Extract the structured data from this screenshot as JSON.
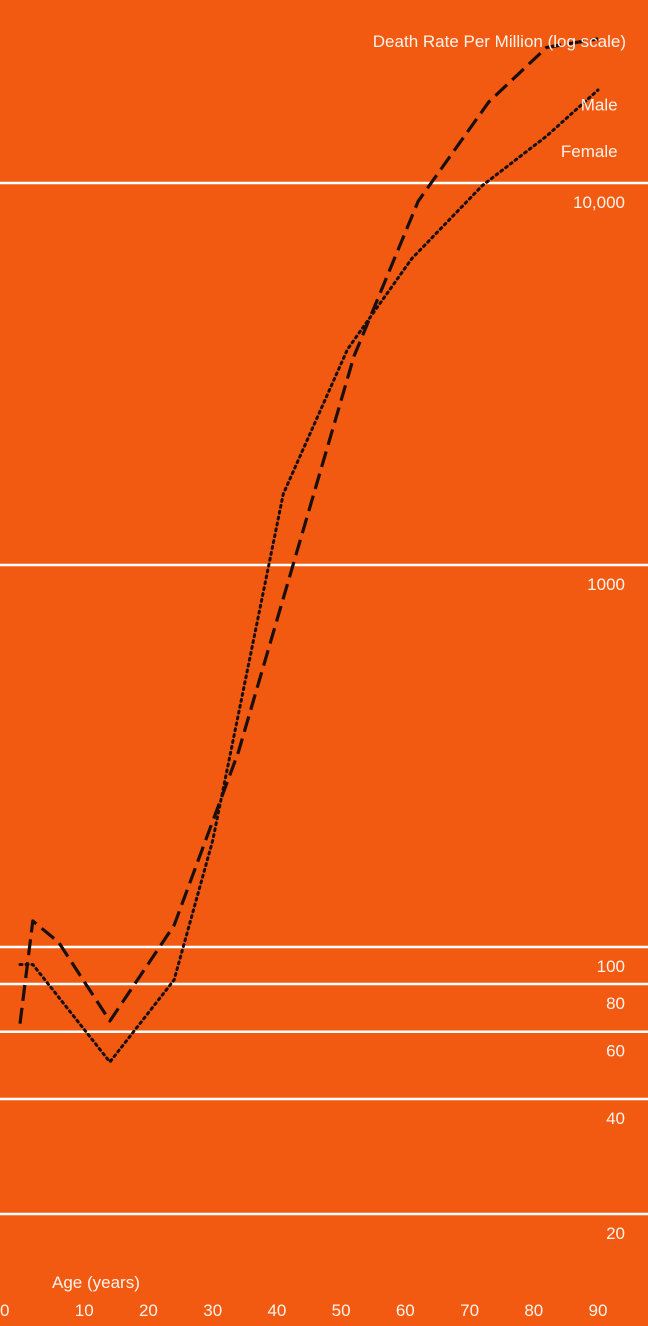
{
  "chart_data": {
    "type": "line",
    "title": "Death Rate Per Million (log scale)",
    "xlabel": "Age (years)",
    "ylabel": "Death Rate Per Million (log scale)",
    "y_scale": "log",
    "grid": true,
    "background_color": "#f25a12",
    "gridline_color": "#ffffff",
    "text_color": "#fff3ec",
    "line_color": "#1a0f0a",
    "xlim": [
      0,
      90
    ],
    "ylim": [
      14,
      30000
    ],
    "x_ticks": [
      {
        "value": 0,
        "label": "0"
      },
      {
        "value": 10,
        "label": "10"
      },
      {
        "value": 20,
        "label": "20"
      },
      {
        "value": 30,
        "label": "30"
      },
      {
        "value": 40,
        "label": "40"
      },
      {
        "value": 50,
        "label": "50"
      },
      {
        "value": 60,
        "label": "60"
      },
      {
        "value": 70,
        "label": "70"
      },
      {
        "value": 80,
        "label": "80"
      },
      {
        "value": 90,
        "label": "90"
      }
    ],
    "y_ticks": [
      {
        "value": 10000,
        "label": "10,000"
      },
      {
        "value": 1000,
        "label": "1000"
      },
      {
        "value": 100,
        "label": "100"
      },
      {
        "value": 80,
        "label": "80"
      },
      {
        "value": 60,
        "label": "60"
      },
      {
        "value": 40,
        "label": "40"
      },
      {
        "value": 20,
        "label": "20"
      }
    ],
    "series": [
      {
        "name": "Male",
        "style": "dashed",
        "label_anchor": {
          "x": 89,
          "y": 15500
        },
        "x": [
          0,
          2,
          6,
          14,
          24,
          34,
          52,
          62,
          73,
          82,
          90
        ],
        "y": [
          63,
          117,
          103,
          64,
          114,
          324,
          3520,
          8960,
          16300,
          22650,
          23850
        ]
      },
      {
        "name": "Female",
        "style": "dotted",
        "label_anchor": {
          "x": 89,
          "y": 11700
        },
        "x": [
          0,
          2,
          14,
          24,
          30,
          41,
          51,
          61,
          72,
          82,
          90
        ],
        "y": [
          90,
          90,
          50,
          82,
          190,
          1535,
          3670,
          6340,
          9850,
          13270,
          17520
        ]
      }
    ]
  }
}
